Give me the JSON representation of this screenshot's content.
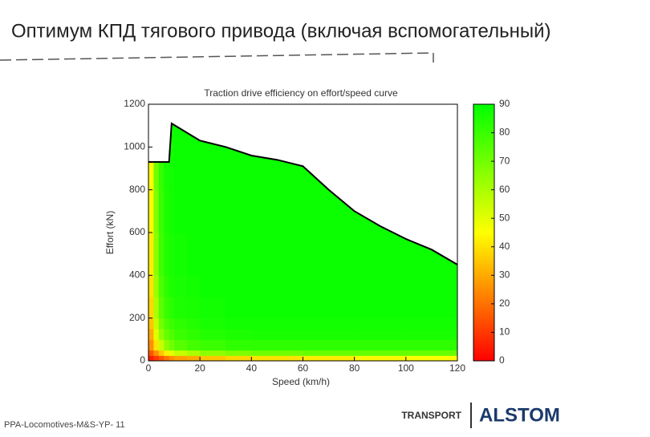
{
  "slide_title": "Оптимум КПД тягового привода (включая вспомогательный)",
  "footer": "PPA-Locomotives-M&S-YP- 11",
  "logo": {
    "division": "TRANSPORT",
    "brand": "ALSTOM"
  },
  "chart_data": {
    "type": "heatmap",
    "title": "Traction drive efficiency on effort/speed curve",
    "x_label": "Speed (km/h)",
    "y_label": "Effort (kN)",
    "xlim": [
      0,
      120
    ],
    "xticks": [
      0,
      20,
      40,
      60,
      80,
      100,
      120
    ],
    "ylim": [
      0,
      1200
    ],
    "yticks": [
      0,
      200,
      400,
      600,
      800,
      1000,
      1200
    ],
    "x_bins": [
      0,
      2,
      4,
      6,
      8,
      10,
      15,
      20,
      30,
      40,
      60,
      80,
      100,
      120
    ],
    "y_bins": [
      0,
      25,
      50,
      100,
      150,
      200,
      300,
      400,
      600,
      800,
      1150
    ],
    "z": [
      [
        5,
        10,
        15,
        20,
        25,
        28,
        30,
        35,
        38,
        40,
        42,
        44,
        45
      ],
      [
        15,
        25,
        35,
        42,
        50,
        55,
        60,
        65,
        68,
        70,
        72,
        72,
        72
      ],
      [
        25,
        40,
        55,
        65,
        70,
        75,
        78,
        80,
        82,
        82,
        82,
        82,
        82
      ],
      [
        30,
        50,
        65,
        72,
        76,
        80,
        82,
        84,
        85,
        86,
        86,
        86,
        86
      ],
      [
        35,
        55,
        70,
        76,
        80,
        82,
        84,
        86,
        87,
        87,
        87,
        87,
        87
      ],
      [
        38,
        60,
        74,
        80,
        83,
        85,
        86,
        87,
        88,
        88,
        88,
        88,
        88
      ],
      [
        40,
        63,
        77,
        82,
        85,
        86,
        87,
        88,
        88,
        88,
        88,
        88,
        88
      ],
      [
        42,
        66,
        79,
        84,
        86,
        87,
        88,
        88,
        88,
        88,
        88,
        88,
        88
      ],
      [
        44,
        68,
        80,
        85,
        87,
        88,
        88,
        88,
        88,
        88,
        88,
        88,
        88
      ],
      [
        45,
        70,
        81,
        86,
        87,
        88,
        88,
        88,
        88,
        88,
        88,
        88,
        88
      ]
    ],
    "envelope": {
      "color": "#000000",
      "x": [
        0,
        8,
        9,
        20,
        30,
        40,
        50,
        60,
        70,
        80,
        90,
        100,
        110,
        120
      ],
      "y": [
        930,
        930,
        1110,
        1030,
        1000,
        960,
        940,
        910,
        800,
        700,
        630,
        570,
        520,
        450
      ]
    },
    "colormap": [
      "#ff0000",
      "#ffff00",
      "#00ff00"
    ],
    "clim": [
      0,
      90
    ],
    "cticks": [
      0,
      10,
      20,
      30,
      40,
      50,
      60,
      70,
      80,
      90
    ]
  }
}
